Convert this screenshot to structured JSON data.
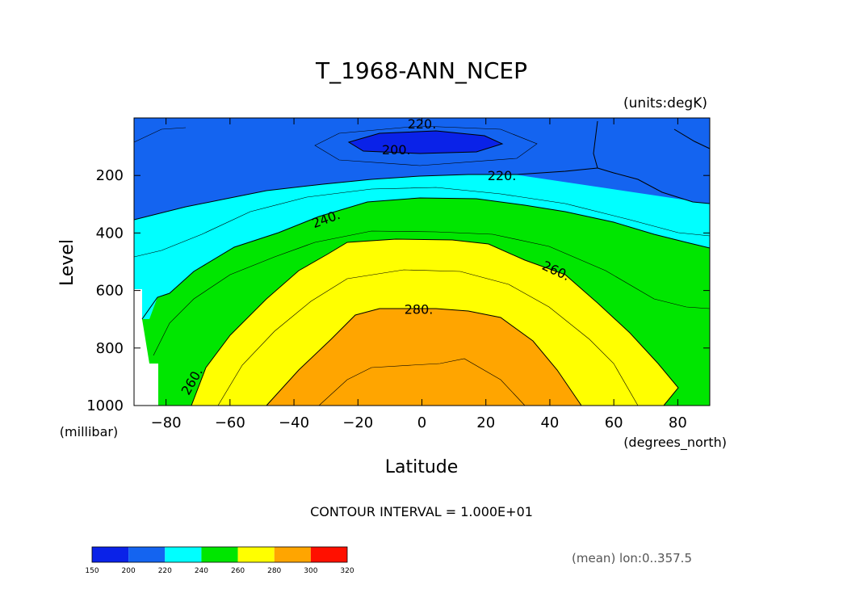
{
  "chart_data": {
    "type": "filled-contour",
    "title": "T_1968-ANN_NCEP",
    "units_label": "(units:degK)",
    "xlabel": "Latitude",
    "x_units_label": "(degrees_north)",
    "ylabel": "Level",
    "y_units_label": "(millibar)",
    "xlim": [
      -90,
      90
    ],
    "ylim": [
      1000,
      0
    ],
    "x_ticks": [
      -80,
      -60,
      -40,
      -20,
      0,
      20,
      40,
      60,
      80
    ],
    "x_tick_labels": [
      "−80",
      "−60",
      "−40",
      "−20",
      "0",
      "20",
      "40",
      "60",
      "80"
    ],
    "y_ticks": [
      200,
      400,
      600,
      800,
      1000
    ],
    "y_tick_labels": [
      "200",
      "400",
      "600",
      "800",
      "1000"
    ],
    "contour_interval_text": "CONTOUR INTERVAL = 1.000E+01",
    "mean_note": "(mean) lon:0..357.5",
    "contour_labels": [
      {
        "text": "220.",
        "lat": 0,
        "level": 20
      },
      {
        "text": "200.",
        "lat": -8,
        "level": 110
      },
      {
        "text": "220.",
        "lat": 25,
        "level": 200
      },
      {
        "text": "240.",
        "lat": -30,
        "level": 350
      },
      {
        "text": "260.",
        "lat": 42,
        "level": 530
      },
      {
        "text": "280.",
        "lat": -1,
        "level": 665
      },
      {
        "text": "260.",
        "lat": -72,
        "level": 915
      }
    ],
    "colorbar": {
      "boundaries": [
        150,
        200,
        220,
        240,
        260,
        280,
        300,
        320
      ],
      "labels": [
        "150",
        "200",
        "220",
        "240",
        "260",
        "280",
        "300",
        "320"
      ],
      "colors": [
        "#0a22e8",
        "#1464f0",
        "#00ffff",
        "#00e600",
        "#ffff00",
        "#ffa500",
        "#ff1000"
      ]
    }
  }
}
